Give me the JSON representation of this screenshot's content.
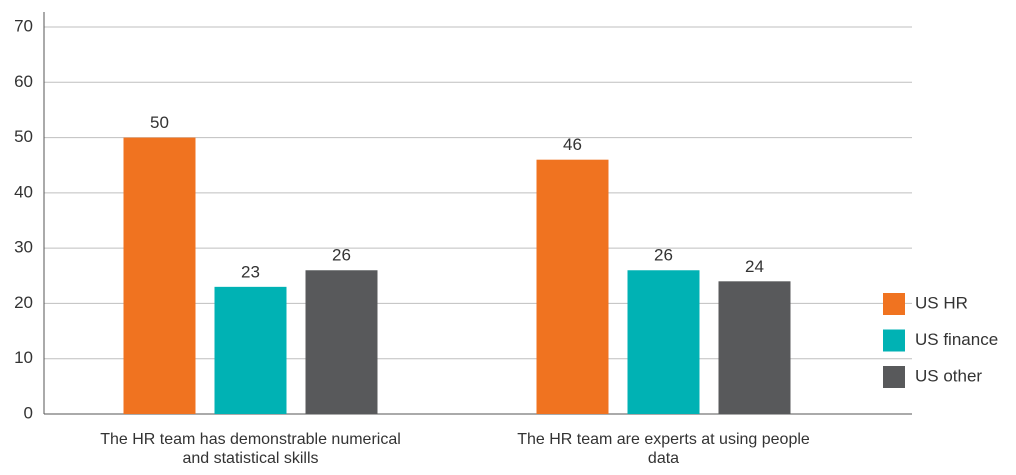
{
  "chart_data": {
    "type": "bar",
    "categories": [
      "The HR team has demonstrable numerical and statistical skills",
      "The HR team are experts at using people data"
    ],
    "series": [
      {
        "name": "US HR",
        "color": "#f07320",
        "values": [
          50,
          46
        ]
      },
      {
        "name": "US finance",
        "color": "#00b2b4",
        "values": [
          23,
          26
        ]
      },
      {
        "name": "US other",
        "color": "#58595b",
        "values": [
          26,
          24
        ]
      }
    ],
    "ylim": [
      0,
      70
    ],
    "yticks": [
      0,
      10,
      20,
      30,
      40,
      50,
      60,
      70
    ],
    "grid": true,
    "legend": "right"
  }
}
